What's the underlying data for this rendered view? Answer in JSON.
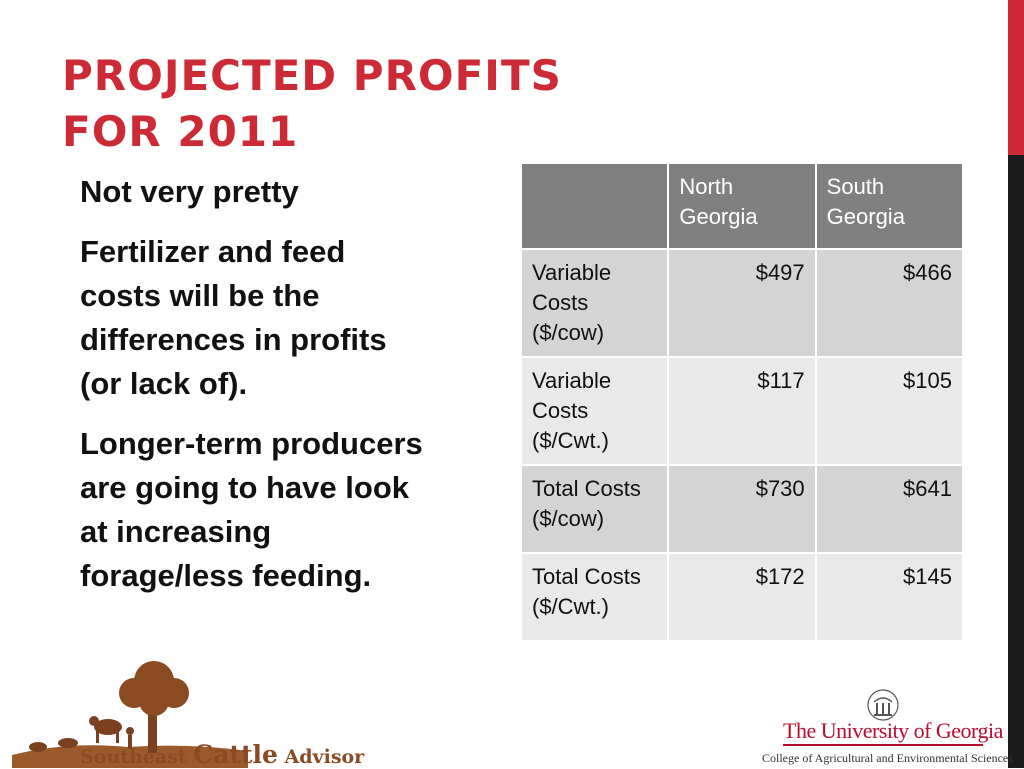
{
  "slide": {
    "title_line1": "PROJECTED PROFITS",
    "title_line2": "FOR 2011",
    "bullets": [
      "Not very pretty",
      "Fertilizer and feed costs will be the differences in profits (or lack of).",
      "Longer-term producers are going to have look at increasing forage/less feeding."
    ],
    "colors": {
      "title": "#cc2b35",
      "accent_red": "#cc2b35",
      "accent_dark": "#1b1b1b",
      "uga_red": "#ba0c2f"
    }
  },
  "table": {
    "headers": [
      "",
      "North Georgia",
      "South Georgia"
    ],
    "rows": [
      {
        "label": "Variable Costs ($/cow)",
        "north": "$497",
        "south": "$466"
      },
      {
        "label": "Variable Costs ($/Cwt.)",
        "north": "$117",
        "south": "$105"
      },
      {
        "label": "Total Costs ($/cow)",
        "north": "$730",
        "south": "$641"
      },
      {
        "label": "Total Costs ($/Cwt.)",
        "north": "$172",
        "south": "$145"
      }
    ]
  },
  "logos": {
    "sca_word1": "Southeast",
    "sca_word2": "Cattle",
    "sca_word3": "Advisor",
    "uga_name": "The University of Georgia",
    "uga_college": "College of Agricultural and Environmental Sciences"
  }
}
